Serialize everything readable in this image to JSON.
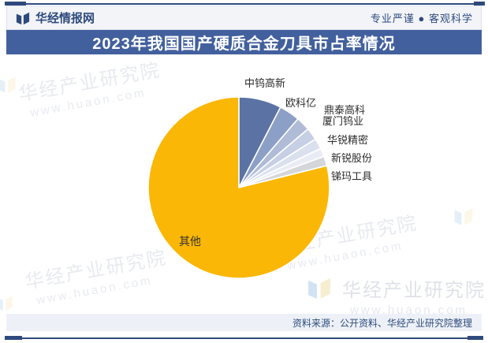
{
  "header": {
    "brand": "华经情报网",
    "slogan": "专业严谨 ● 客观科学"
  },
  "title": "2023年我国国产硬质合金刀具市占率情况",
  "footer": {
    "source": "资料来源：公开资料、华经产业研究院整理"
  },
  "watermark": {
    "name": "华经产业研究院",
    "url": "www.huaon.com"
  },
  "colors": {
    "accent_navy": "#2E4A7D",
    "title_bar_blue": "#42609E",
    "header_bg": "#F2F4F8",
    "footer_bg": "#EDF1F7",
    "other_slice_yellow": "#FBB705"
  },
  "chart_data": {
    "type": "pie",
    "title": "2023年我国国产硬质合金刀具市占率情况",
    "unit": "% (share estimated from slice angles; values not labeled on chart)",
    "start_angle_deg": 0,
    "direction": "clockwise",
    "legend_position": "callout-labels",
    "segments": [
      {
        "label": "中钨高新",
        "value": 7.6,
        "color": "#5B72A4"
      },
      {
        "label": "欧科亿",
        "value": 3.7,
        "color": "#8C9FC6"
      },
      {
        "label": "鼎泰高科",
        "value": 2.5,
        "color": "#AFBBD7"
      },
      {
        "label": "厦门钨业",
        "value": 2.2,
        "color": "#C6CFE4"
      },
      {
        "label": "华锐精密",
        "value": 1.9,
        "color": "#DAE0EE"
      },
      {
        "label": "新锐股份",
        "value": 1.5,
        "color": "#E9ECF4"
      },
      {
        "label": "锑玛工具",
        "value": 1.7,
        "color": "#D5D6DA"
      },
      {
        "label": "其他",
        "value": 78.9,
        "color": "#FBB705"
      }
    ]
  }
}
